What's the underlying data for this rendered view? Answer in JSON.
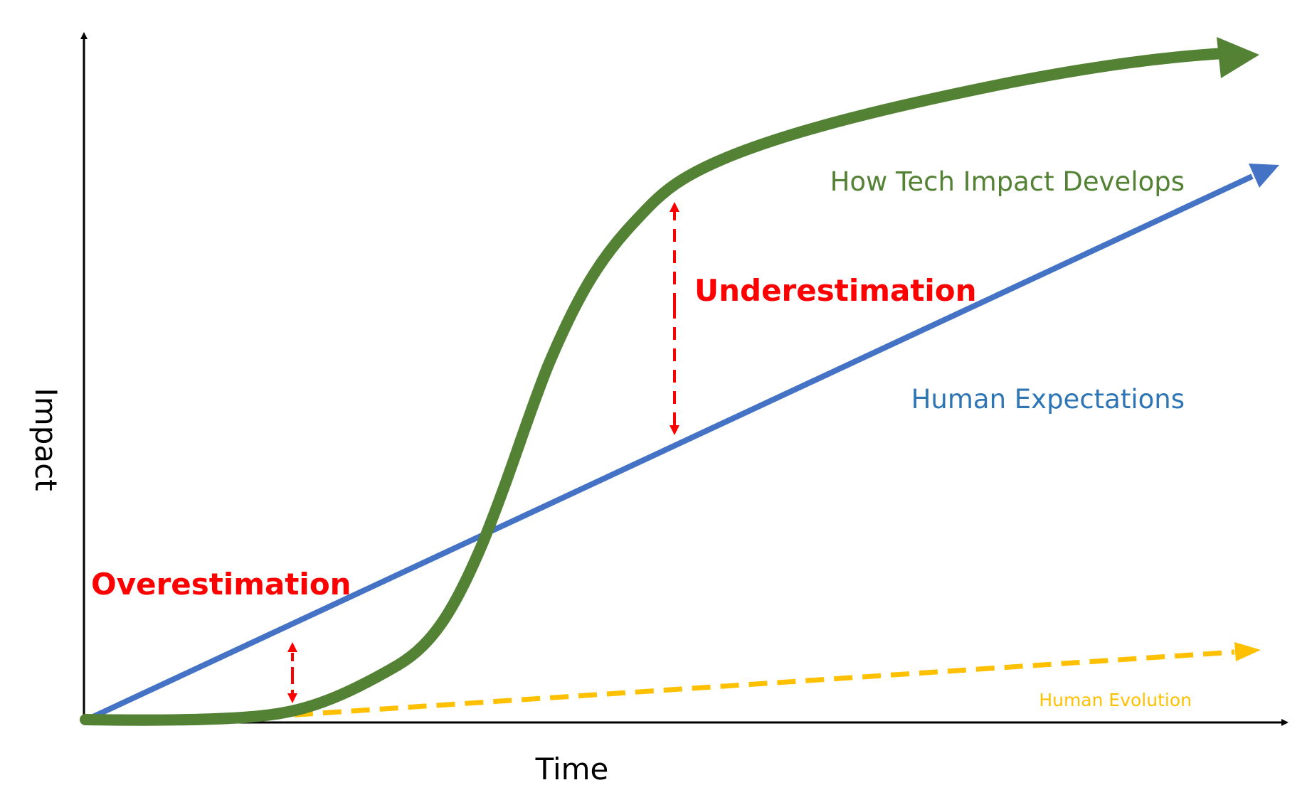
{
  "axes": {
    "x_label": "Time",
    "y_label": "Impact"
  },
  "curves": {
    "tech": {
      "label": "How Tech Impact Develops",
      "color": "#548235"
    },
    "expectations": {
      "label": "Human Expectations",
      "color": "#4472c4"
    },
    "evolution": {
      "label": "Human Evolution",
      "color": "#ffc000"
    }
  },
  "annotations": {
    "overestimation": {
      "label": "Overestimation",
      "color": "#ff0000"
    },
    "underestimation": {
      "label": "Underestimation",
      "color": "#ff0000"
    }
  },
  "axis_color": "#000000"
}
